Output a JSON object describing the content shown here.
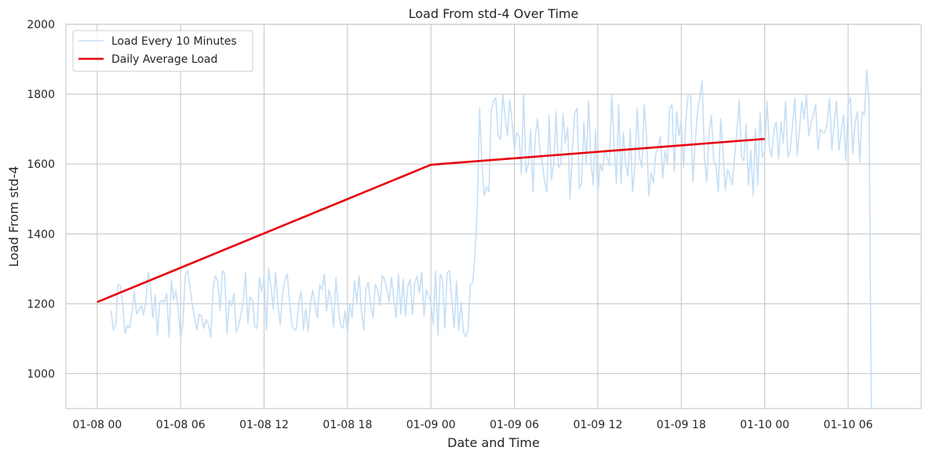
{
  "chart_data": {
    "type": "line",
    "title": "Load From std-4 Over Time",
    "xlabel": "Date and Time",
    "ylabel": "Load From std-4",
    "ylim": [
      900,
      2000
    ],
    "xlim": [
      "2025-01-07T21:45",
      "2025-01-10T11:15"
    ],
    "x_ticks": [
      {
        "t": "2025-01-08T00:00",
        "label": "01-08 00"
      },
      {
        "t": "2025-01-08T06:00",
        "label": "01-08 06"
      },
      {
        "t": "2025-01-08T12:00",
        "label": "01-08 12"
      },
      {
        "t": "2025-01-08T18:00",
        "label": "01-08 18"
      },
      {
        "t": "2025-01-09T00:00",
        "label": "01-09 00"
      },
      {
        "t": "2025-01-09T06:00",
        "label": "01-09 06"
      },
      {
        "t": "2025-01-09T12:00",
        "label": "01-09 12"
      },
      {
        "t": "2025-01-09T18:00",
        "label": "01-09 18"
      },
      {
        "t": "2025-01-10T00:00",
        "label": "01-10 00"
      },
      {
        "t": "2025-01-10T06:00",
        "label": "01-10 06"
      }
    ],
    "y_ticks": [
      1000,
      1200,
      1400,
      1600,
      1800,
      2000
    ],
    "grid": true,
    "legend_position": "top-left",
    "series": [
      {
        "name": "Load Every 10 Minutes",
        "color": "#c6dff5",
        "interval_minutes": 10,
        "start": "2025-01-08T01:00",
        "values": [
          1180,
          1125,
          1140,
          1255,
          1252,
          1200,
          1115,
          1138,
          1130,
          1175,
          1235,
          1170,
          1182,
          1195,
          1168,
          1210,
          1290,
          1250,
          1160,
          1225,
          1110,
          1205,
          1210,
          1205,
          1230,
          1105,
          1268,
          1210,
          1238,
          1182,
          1100,
          1145,
          1280,
          1295,
          1250,
          1200,
          1160,
          1125,
          1170,
          1165,
          1130,
          1155,
          1140,
          1105,
          1245,
          1280,
          1265,
          1180,
          1295,
          1285,
          1115,
          1210,
          1195,
          1230,
          1120,
          1135,
          1170,
          1205,
          1290,
          1145,
          1220,
          1210,
          1135,
          1130,
          1275,
          1235,
          1280,
          1125,
          1300,
          1250,
          1185,
          1290,
          1195,
          1140,
          1230,
          1270,
          1285,
          1205,
          1140,
          1125,
          1130,
          1205,
          1235,
          1125,
          1185,
          1120,
          1200,
          1240,
          1195,
          1160,
          1255,
          1240,
          1285,
          1180,
          1240,
          1210,
          1135,
          1275,
          1190,
          1140,
          1130,
          1180,
          1115,
          1200,
          1160,
          1265,
          1205,
          1280,
          1180,
          1125,
          1245,
          1260,
          1195,
          1160,
          1255,
          1240,
          1195,
          1280,
          1270,
          1240,
          1205,
          1275,
          1210,
          1160,
          1285,
          1170,
          1270,
          1165,
          1250,
          1270,
          1170,
          1260,
          1280,
          1230,
          1290,
          1165,
          1240,
          1225,
          1200,
          1140,
          1295,
          1110,
          1285,
          1270,
          1130,
          1290,
          1295,
          1210,
          1130,
          1265,
          1125,
          1205,
          1120,
          1105,
          1125,
          1255,
          1260,
          1340,
          1480,
          1760,
          1600,
          1510,
          1535,
          1520,
          1755,
          1780,
          1790,
          1680,
          1670,
          1800,
          1735,
          1680,
          1785,
          1720,
          1640,
          1690,
          1680,
          1570,
          1800,
          1575,
          1600,
          1700,
          1520,
          1680,
          1730,
          1640,
          1605,
          1550,
          1520,
          1740,
          1555,
          1600,
          1750,
          1590,
          1600,
          1745,
          1660,
          1705,
          1500,
          1640,
          1745,
          1760,
          1530,
          1545,
          1720,
          1600,
          1780,
          1610,
          1540,
          1700,
          1510,
          1600,
          1580,
          1640,
          1620,
          1595,
          1800,
          1660,
          1545,
          1770,
          1545,
          1690,
          1600,
          1565,
          1700,
          1520,
          1595,
          1760,
          1620,
          1590,
          1770,
          1680,
          1510,
          1575,
          1545,
          1630,
          1650,
          1680,
          1560,
          1640,
          1600,
          1760,
          1770,
          1580,
          1750,
          1680,
          1725,
          1590,
          1730,
          1800,
          1800,
          1550,
          1660,
          1750,
          1790,
          1840,
          1620,
          1550,
          1690,
          1740,
          1610,
          1595,
          1520,
          1730,
          1640,
          1525,
          1585,
          1565,
          1540,
          1620,
          1690,
          1785,
          1620,
          1610,
          1715,
          1540,
          1640,
          1510,
          1700,
          1540,
          1745,
          1620,
          1640,
          1780,
          1650,
          1620,
          1700,
          1720,
          1615,
          1720,
          1660,
          1780,
          1620,
          1640,
          1710,
          1790,
          1625,
          1700,
          1780,
          1730,
          1800,
          1680,
          1720,
          1740,
          1770,
          1640,
          1700,
          1690,
          1690,
          1720,
          1790,
          1640,
          1720,
          1780,
          1640,
          1690,
          1740,
          1610,
          1770,
          1790,
          1630,
          1720,
          1750,
          1605,
          1750,
          1740,
          1870,
          1780,
          900
        ]
      },
      {
        "name": "Daily Average Load",
        "color": "#e8000b",
        "points": [
          {
            "t": "2025-01-08T00:00",
            "y": 1205
          },
          {
            "t": "2025-01-09T00:00",
            "y": 1598
          },
          {
            "t": "2025-01-10T00:00",
            "y": 1672
          }
        ]
      }
    ]
  }
}
